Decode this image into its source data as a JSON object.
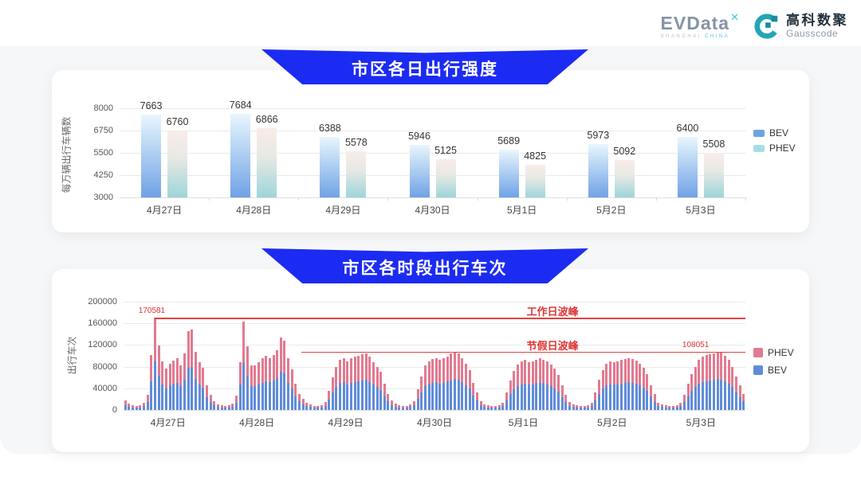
{
  "header": {
    "evdata": {
      "text": "EVData",
      "mark": "✕",
      "sub_left": "SHANGHAI",
      "sub_right": "CHINA"
    },
    "gausscode": {
      "cn": "高科数聚",
      "en": "Gausscode"
    }
  },
  "colors": {
    "banner_blue": "#1c2bf2",
    "annotation_red": "#e34040",
    "daily_bev_gradient_top": "#e8f6fd",
    "daily_bev_gradient_bottom": "#6fa2e5",
    "daily_phev_gradient_top": "#f9ece8",
    "daily_phev_gradient_mid": "#e8e9e4",
    "daily_phev_gradient_bottom": "#9ed5da",
    "daily_legend_bev": "#6fa2e5",
    "daily_legend_phev": "#a9dde6",
    "hourly_bev_blue": "#5f8cd9",
    "hourly_phev_pink": "#e27a90",
    "gauss_teal": "#25a5b5"
  },
  "chart_data": [
    {
      "type": "bar",
      "title": "市区各日出行强度",
      "ylabel": "每万辆出行车辆数",
      "xlabel": "",
      "ylim": [
        3000,
        8000
      ],
      "y_ticks": [
        8000,
        6750,
        5500,
        4250,
        3000
      ],
      "categories": [
        "4月27日",
        "4月28日",
        "4月29日",
        "4月30日",
        "5月1日",
        "5月2日",
        "5月3日"
      ],
      "series": [
        {
          "name": "BEV",
          "values": [
            7663,
            7684,
            6388,
            5946,
            5689,
            5973,
            6400
          ]
        },
        {
          "name": "PHEV",
          "values": [
            6760,
            6866,
            5578,
            5125,
            4825,
            5092,
            5508
          ]
        }
      ],
      "legend": [
        "BEV",
        "PHEV"
      ],
      "legend_position": "right",
      "grid": true
    },
    {
      "type": "bar",
      "subtype": "stacked-hourly",
      "title": "市区各时段出行车次",
      "ylabel": "出行车次",
      "xlabel": "",
      "ylim": [
        0,
        200000
      ],
      "y_ticks": [
        200000,
        160000,
        120000,
        80000,
        40000,
        0
      ],
      "categories": [
        "4月27日",
        "4月28日",
        "4月29日",
        "4月30日",
        "5月1日",
        "5月2日",
        "5月3日"
      ],
      "stack_order_bottom_to_top": [
        "BEV",
        "PHEV"
      ],
      "bev_fraction": 0.53,
      "days": [
        {
          "label": "4月27日",
          "totals": [
            18000,
            12000,
            9500,
            8000,
            8200,
            13000,
            28000,
            101000,
            170581,
            119000,
            90000,
            76000,
            85000,
            91000,
            95000,
            82000,
            105000,
            146000,
            149000,
            108000,
            89000,
            78000,
            45000,
            28000
          ]
        },
        {
          "label": "4月28日",
          "totals": [
            16000,
            11000,
            9000,
            8000,
            8200,
            12000,
            26000,
            88000,
            164000,
            117000,
            83000,
            82000,
            88000,
            95000,
            100000,
            96000,
            102000,
            110000,
            134000,
            128000,
            95000,
            75000,
            48000,
            30000
          ]
        },
        {
          "label": "4月29日",
          "totals": [
            20000,
            13000,
            10000,
            8000,
            7500,
            9000,
            15000,
            35000,
            60000,
            80000,
            93000,
            96000,
            90000,
            95000,
            98000,
            100000,
            103000,
            105000,
            98000,
            88000,
            80000,
            70000,
            48000,
            30000
          ]
        },
        {
          "label": "4月30日",
          "totals": [
            18000,
            12000,
            9500,
            8000,
            7500,
            10000,
            16000,
            38000,
            62000,
            82000,
            90000,
            94000,
            96000,
            92000,
            95000,
            99000,
            104000,
            107000,
            105000,
            96000,
            86000,
            74000,
            50000,
            32000
          ]
        },
        {
          "label": "5月1日",
          "totals": [
            16000,
            11000,
            9000,
            8000,
            7500,
            9000,
            14000,
            32000,
            55000,
            72000,
            84000,
            90000,
            92000,
            88000,
            90000,
            93000,
            95000,
            93000,
            90000,
            84000,
            76000,
            65000,
            45000,
            28000
          ]
        },
        {
          "label": "5月2日",
          "totals": [
            15000,
            11000,
            9000,
            8000,
            7500,
            9000,
            14000,
            33000,
            56000,
            74000,
            85000,
            90000,
            88000,
            90000,
            92000,
            94000,
            96000,
            94000,
            91000,
            85000,
            78000,
            66000,
            46000,
            29000
          ]
        },
        {
          "label": "5月3日",
          "totals": [
            14000,
            11000,
            9000,
            8000,
            7500,
            9000,
            13000,
            28000,
            48000,
            66000,
            80000,
            92000,
            98000,
            101000,
            103000,
            105000,
            108051,
            106000,
            100000,
            92000,
            80000,
            62000,
            45000,
            30000
          ]
        }
      ],
      "annotations": [
        {
          "text": "工作日波峰",
          "value": 170581,
          "value_label": "170581",
          "starts_at": "peak"
        },
        {
          "text": "节假日波峰",
          "value": 108051,
          "value_label": "108051",
          "starts_at": "4月29日"
        }
      ],
      "legend": [
        "PHEV",
        "BEV"
      ],
      "legend_position": "right",
      "grid": true
    }
  ]
}
